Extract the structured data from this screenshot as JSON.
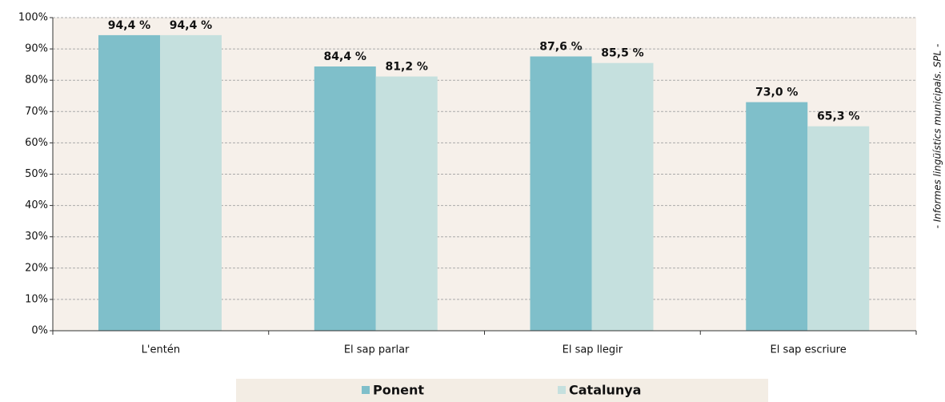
{
  "chart_data": {
    "type": "bar",
    "categories": [
      "L'entén",
      "El sap parlar",
      "El sap llegir",
      "El sap escriure"
    ],
    "series": [
      {
        "name": "Ponent",
        "color": "#7fbfca",
        "values": [
          94.4,
          84.4,
          87.6,
          73.0
        ],
        "value_labels": [
          "94,4 %",
          "84,4 %",
          "87,6 %",
          "73,0 %"
        ]
      },
      {
        "name": "Catalunya",
        "color": "#c5e0de",
        "values": [
          94.4,
          81.2,
          85.5,
          65.3
        ],
        "value_labels": [
          "94,4 %",
          "81,2 %",
          "85,5 %",
          "65,3 %"
        ]
      }
    ],
    "ylim": [
      0,
      100
    ],
    "yticks": [
      {
        "value": 0,
        "label": "0%"
      },
      {
        "value": 10,
        "label": "10%"
      },
      {
        "value": 20,
        "label": "20%"
      },
      {
        "value": 30,
        "label": "30%"
      },
      {
        "value": 40,
        "label": "40%"
      },
      {
        "value": 50,
        "label": "50%"
      },
      {
        "value": 60,
        "label": "60%"
      },
      {
        "value": 70,
        "label": "70%"
      },
      {
        "value": 80,
        "label": "80%"
      },
      {
        "value": 90,
        "label": "90%"
      },
      {
        "value": 100,
        "label": "100%"
      }
    ],
    "grid": true,
    "legend": "bottom",
    "source_note": "- Informes lingüístics municipals. SPL -"
  }
}
